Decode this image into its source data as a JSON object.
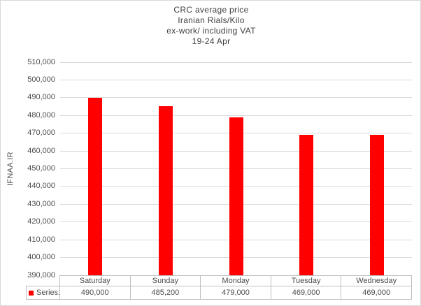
{
  "chart_data": {
    "type": "bar",
    "title": "CRC average price Iranian Rials/Kilo ex-work/ including VAT 19-24 Apr",
    "title_lines": [
      "CRC average price",
      "Iranian Rials/Kilo",
      "ex-work/ including VAT",
      "19-24 Apr"
    ],
    "xlabel": "",
    "ylabel": "IFNAA.IR",
    "categories": [
      "Saturday",
      "Sunday",
      "Monday",
      "Tuesday",
      "Wednesday"
    ],
    "series": [
      {
        "name": "Series1",
        "color": "#ff0000",
        "values": [
          490000,
          485200,
          479000,
          469000,
          469000
        ],
        "value_labels": [
          "490,000",
          "485,200",
          "479,000",
          "469,000",
          "469,000"
        ]
      }
    ],
    "ylim": [
      390000,
      510000
    ],
    "ytick_step": 10000,
    "ytick_labels": [
      "390,000",
      "400,000",
      "410,000",
      "420,000",
      "430,000",
      "440,000",
      "450,000",
      "460,000",
      "470,000",
      "480,000",
      "490,000",
      "500,000",
      "510,000"
    ],
    "grid": true,
    "legend_position": "bottom-data-table"
  },
  "colors": {
    "bar": "#ff0000",
    "gridline": "#d9d9d9",
    "table_border": "#bfbfbf",
    "axis_text": "#4d4d4d",
    "title_text": "#404040",
    "background": "#ffffff",
    "frame_border": "#d9d9d9"
  }
}
